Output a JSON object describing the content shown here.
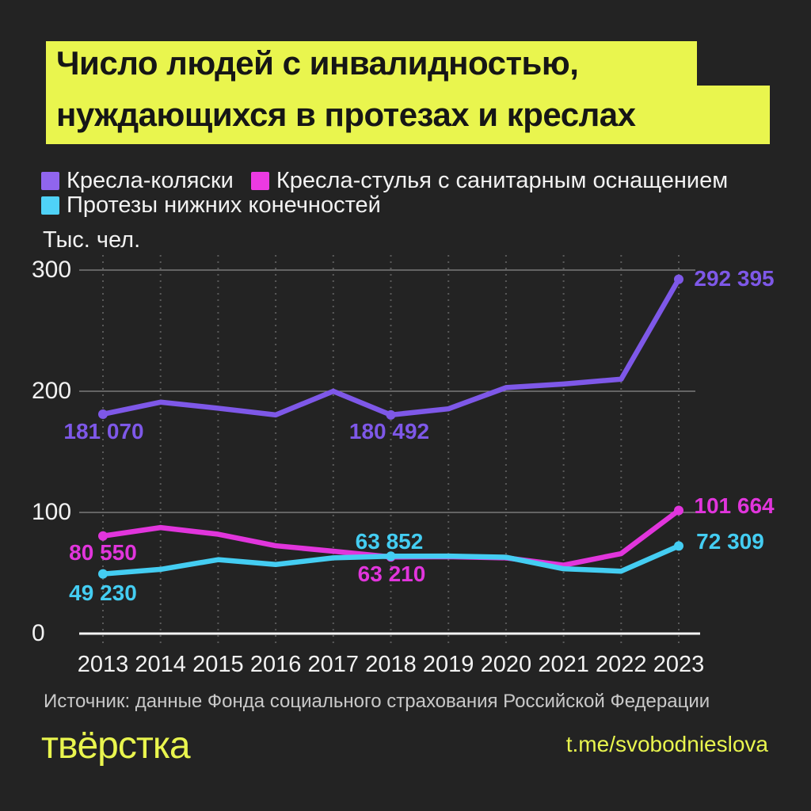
{
  "title": {
    "line1": "Число людей с инвалидностью,",
    "line2": "нуждающихся в протезах и креслах"
  },
  "legend": [
    {
      "label": "Кресла-коляски",
      "color": "#9065ee"
    },
    {
      "label": "Кресла-стулья с санитарным оснащением",
      "color": "#ec3ae2"
    },
    {
      "label": "Протезы нижних конечностей",
      "color": "#4fd2f7"
    }
  ],
  "chart_data": {
    "type": "line",
    "unit_label": "Тыс. чел.",
    "categories": [
      "2013",
      "2014",
      "2015",
      "2016",
      "2017",
      "2018",
      "2019",
      "2020",
      "2021",
      "2022",
      "2023"
    ],
    "y_ticks": [
      0,
      100,
      200,
      300
    ],
    "ylim": [
      0,
      300
    ],
    "grid": {
      "horizontal": "solid",
      "vertical": "dotted"
    },
    "series": [
      {
        "name": "Кресла-коляски",
        "color": "#7e58e8",
        "values": [
          181.07,
          191,
          186,
          180.5,
          200,
          180.492,
          185.5,
          203,
          206,
          210,
          292.395
        ]
      },
      {
        "name": "Кресла-стулья с санитарным оснащением",
        "color": "#e135dc",
        "values": [
          80.55,
          87.5,
          82,
          72.5,
          68,
          63.21,
          63.5,
          62.5,
          56.5,
          66,
          101.664
        ]
      },
      {
        "name": "Протезы нижних конечностей",
        "color": "#44cdf2",
        "values": [
          49.23,
          53,
          61,
          57,
          62.5,
          63.852,
          64,
          63,
          53.5,
          51.5,
          72.309
        ]
      }
    ],
    "marker_years": [
      "2013",
      "2018",
      "2023"
    ],
    "annotations": [
      {
        "series": 0,
        "year": "2013",
        "text": "181 070"
      },
      {
        "series": 0,
        "year": "2018",
        "text": "180 492"
      },
      {
        "series": 0,
        "year": "2023",
        "text": "292 395"
      },
      {
        "series": 1,
        "year": "2013",
        "text": "80 550"
      },
      {
        "series": 1,
        "year": "2018",
        "text": "63 210"
      },
      {
        "series": 1,
        "year": "2023",
        "text": "101 664"
      },
      {
        "series": 2,
        "year": "2013",
        "text": "49 230"
      },
      {
        "series": 2,
        "year": "2018",
        "text": "63 852"
      },
      {
        "series": 2,
        "year": "2023",
        "text": "72 309"
      }
    ]
  },
  "source": "Источник: данные Фонда социального страхования Российской Федерации",
  "footer": {
    "logo": "твёрстка",
    "link": "t.me/svobodnieslova"
  },
  "colors": {
    "accent_yellow": "#e9f54e",
    "background": "#232323",
    "purple": "#7e58e8",
    "magenta": "#e135dc",
    "cyan": "#44cdf2"
  }
}
